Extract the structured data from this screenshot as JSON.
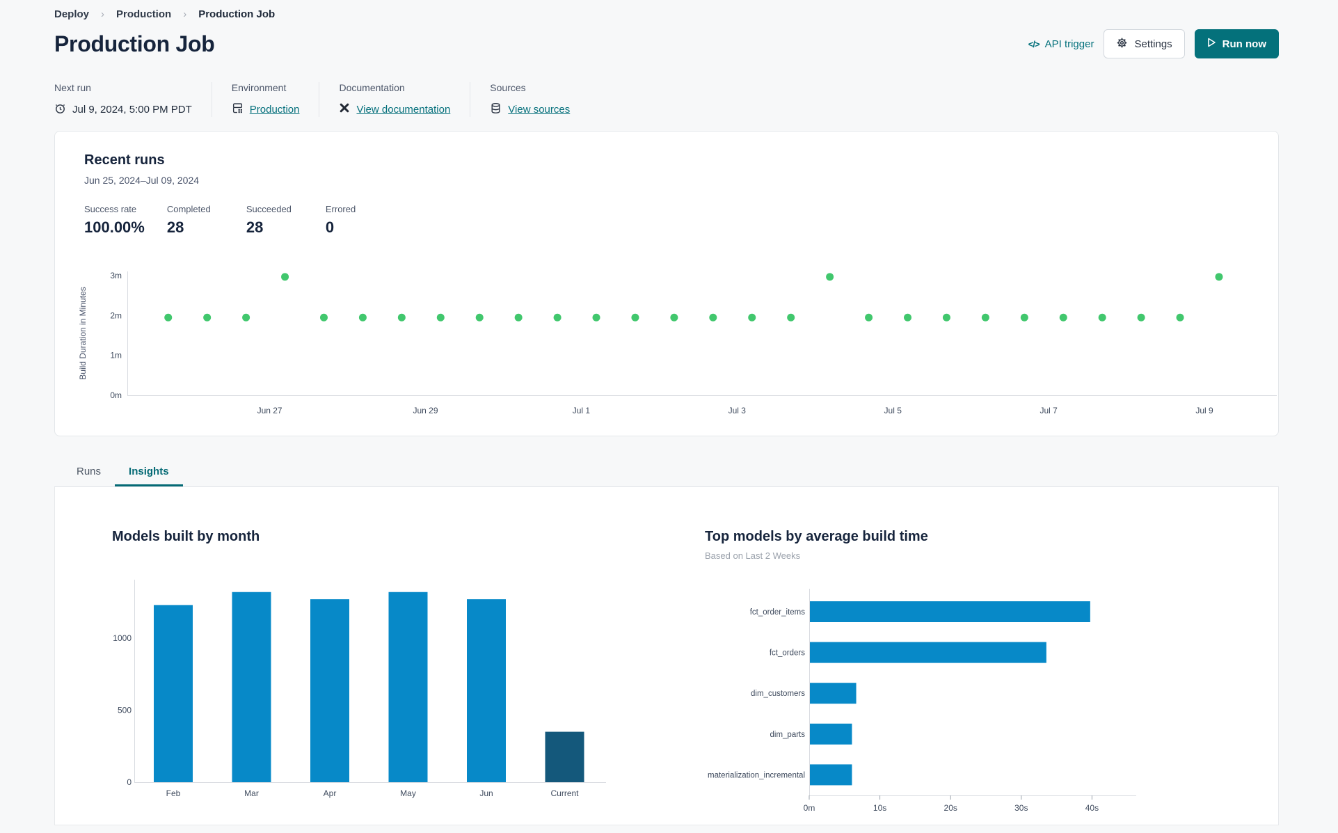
{
  "colors": {
    "accent_teal": "#04717b",
    "link_teal": "#05707c",
    "run_dot_green": "#41c76d",
    "bar_blue": "#0789c8",
    "bar_dark_blue": "#14587b"
  },
  "breadcrumb": {
    "items": [
      "Deploy",
      "Production",
      "Production Job"
    ]
  },
  "header": {
    "title": "Production Job",
    "api_trigger_label": "API trigger",
    "settings_label": "Settings",
    "run_now_label": "Run now"
  },
  "meta": {
    "next_run": {
      "label": "Next run",
      "value": "Jul 9, 2024, 5:00 PM PDT"
    },
    "environment": {
      "label": "Environment",
      "link": "Production"
    },
    "documentation": {
      "label": "Documentation",
      "link": "View documentation"
    },
    "sources": {
      "label": "Sources",
      "link": "View sources"
    }
  },
  "recent_runs": {
    "title": "Recent runs",
    "date_range": "Jun 25, 2024–Jul 09, 2024",
    "stats": [
      {
        "label": "Success rate",
        "value": "100.00%"
      },
      {
        "label": "Completed",
        "value": "28"
      },
      {
        "label": "Succeeded",
        "value": "28"
      },
      {
        "label": "Errored",
        "value": "0"
      }
    ]
  },
  "tabs": [
    {
      "label": "Runs",
      "active": false
    },
    {
      "label": "Insights",
      "active": true
    }
  ],
  "chart_data": [
    {
      "id": "run-durations",
      "type": "scatter",
      "title": "Recent runs",
      "ylabel": "Build Duration in Minutes",
      "yticks": [
        "0m",
        "1m",
        "2m",
        "3m"
      ],
      "ylim_minutes": [
        0,
        3.5
      ],
      "xticklabels": [
        "Jun 27",
        "Jun 29",
        "Jul 1",
        "Jul 3",
        "Jul 5",
        "Jul 7",
        "Jul 9"
      ],
      "point_color": "#41c76d",
      "grid": false,
      "points_minutes": [
        1.95,
        1.95,
        1.95,
        2.97,
        1.95,
        1.95,
        1.95,
        1.95,
        1.95,
        1.95,
        1.95,
        1.95,
        1.95,
        1.95,
        1.95,
        1.95,
        1.95,
        2.97,
        1.95,
        1.95,
        1.95,
        1.95,
        1.95,
        1.95,
        1.95,
        1.95,
        1.95,
        2.97
      ]
    },
    {
      "id": "models-built-by-month",
      "type": "bar",
      "title": "Models built by month",
      "categories": [
        "Feb",
        "Mar",
        "Apr",
        "May",
        "Jun",
        "Current"
      ],
      "values": [
        1230,
        1320,
        1270,
        1320,
        1270,
        350
      ],
      "yticks": [
        0,
        500,
        1000
      ],
      "ylim": [
        0,
        1400
      ],
      "grid": false,
      "bar_color": "#0789c8",
      "highlight_color": "#14587b",
      "xlabel": "",
      "ylabel": ""
    },
    {
      "id": "top-models-by-avg-build-time",
      "type": "bar-horizontal",
      "title": "Top models by average build time",
      "subtitle": "Based on Last 2 Weeks",
      "categories": [
        "fct_order_items",
        "fct_orders",
        "dim_customers",
        "dim_parts",
        "materialization_incremental"
      ],
      "values_seconds": [
        39.7,
        33.5,
        6.6,
        6.0,
        6.0
      ],
      "xticks": [
        "0m",
        "10s",
        "20s",
        "30s",
        "40s"
      ],
      "xlim_seconds": [
        0,
        44
      ],
      "grid": false,
      "bar_color": "#0789c8"
    }
  ]
}
